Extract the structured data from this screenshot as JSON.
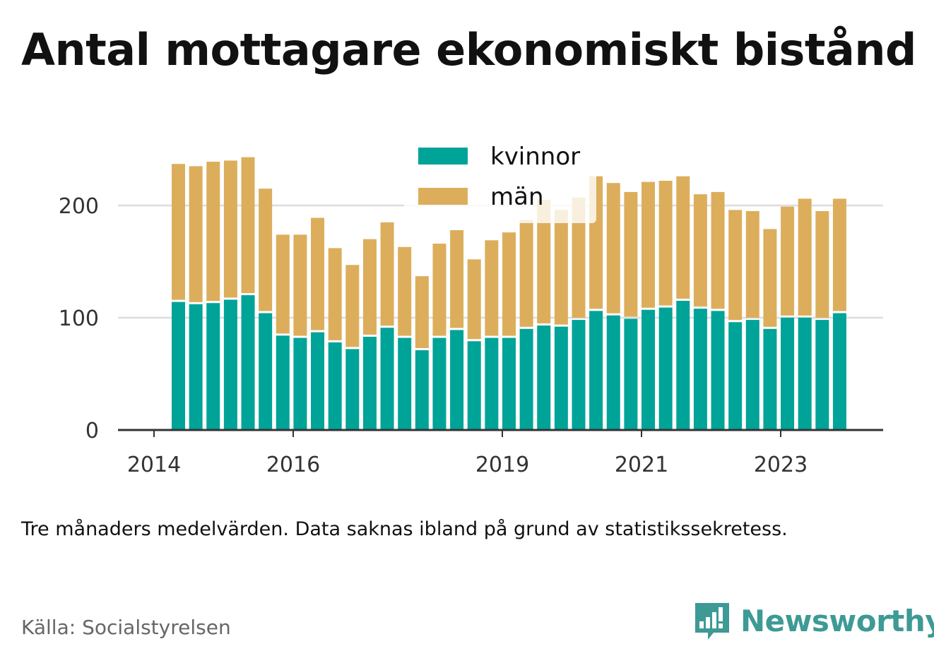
{
  "title": "Antal mottagare ekonomiskt bistånd",
  "note": "Tre månaders medelvärden. Data saknas ibland på grund av statistikssekretess.",
  "source": "Källa: Socialstyrelsen",
  "brand": {
    "name": "Newsworthy",
    "icon": "newsworthy-bar-chart-icon"
  },
  "colors": {
    "kvinnor": "#00a398",
    "man": "#dcae5c",
    "grid": "#dddddd",
    "axis": "#333333"
  },
  "chart_data": {
    "type": "bar",
    "stacked": true,
    "legend": "top-center",
    "grid": "horizontal",
    "ylim": [
      0,
      250
    ],
    "yticks": [
      "0",
      "100",
      "200"
    ],
    "xticks": [
      "2014",
      "2016",
      "2019",
      "2021",
      "2023"
    ],
    "series": [
      {
        "name": "kvinnor",
        "values": [
          115,
          113,
          114,
          117,
          121,
          105,
          85,
          83,
          88,
          79,
          73,
          84,
          92,
          83,
          72,
          83,
          90,
          80,
          83,
          83,
          91,
          94,
          93,
          99,
          107,
          103,
          100,
          108,
          110,
          116,
          109,
          107,
          97,
          99,
          91,
          101,
          101,
          99,
          105
        ]
      },
      {
        "name": "män",
        "values": [
          122,
          122,
          125,
          123,
          122,
          110,
          89,
          91,
          101,
          83,
          74,
          86,
          93,
          80,
          65,
          83,
          88,
          72,
          86,
          93,
          96,
          111,
          103,
          108,
          119,
          117,
          112,
          113,
          112,
          110,
          101,
          105,
          99,
          96,
          88,
          98,
          105,
          96,
          101
        ]
      }
    ]
  }
}
